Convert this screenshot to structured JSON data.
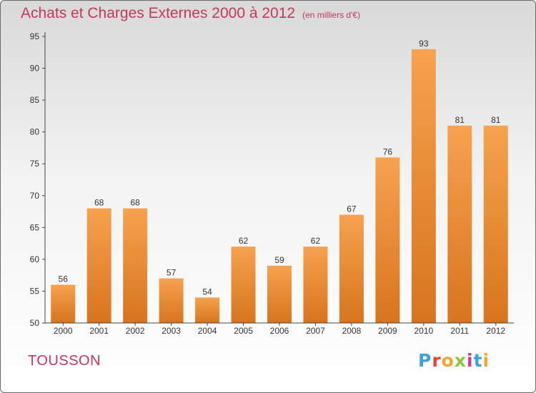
{
  "header": {
    "title": "Achats et Charges Externes 2000 à 2012",
    "subtitle": "(en milliers d'€)"
  },
  "footer": {
    "commune": "TOUSSON",
    "logo_letters": [
      "P",
      "r",
      "o",
      "x",
      "i",
      "t",
      "i"
    ],
    "logo_colors": [
      "#3aa3d9",
      "#e8443a",
      "#f2a52a",
      "#8cc63f",
      "#d63a8f",
      "#3aa3d9",
      "#f2a52a"
    ]
  },
  "chart_data": {
    "type": "bar",
    "title": "Achats et Charges Externes 2000 à 2012",
    "subtitle": "(en milliers d'€)",
    "categories": [
      "2000",
      "2001",
      "2002",
      "2003",
      "2004",
      "2005",
      "2006",
      "2007",
      "2008",
      "2009",
      "2010",
      "2011",
      "2012"
    ],
    "values": [
      56,
      68,
      68,
      57,
      54,
      62,
      59,
      62,
      67,
      76,
      93,
      81,
      81
    ],
    "ylim": [
      50,
      95
    ],
    "yticks": [
      50,
      55,
      60,
      65,
      70,
      75,
      80,
      85,
      90,
      95
    ],
    "xlabel": "",
    "ylabel": "",
    "grid": false,
    "legend": "none",
    "bar_color_top": "#f6a24e",
    "bar_color_bottom": "#d8741f"
  }
}
